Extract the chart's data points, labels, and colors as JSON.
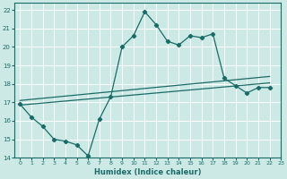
{
  "xlabel": "Humidex (Indice chaleur)",
  "xlim": [
    -0.5,
    23
  ],
  "ylim": [
    14,
    22.4
  ],
  "yticks": [
    14,
    15,
    16,
    17,
    18,
    19,
    20,
    21,
    22
  ],
  "xticks": [
    0,
    1,
    2,
    3,
    4,
    5,
    6,
    7,
    8,
    9,
    10,
    11,
    12,
    13,
    14,
    15,
    16,
    17,
    18,
    19,
    20,
    21,
    22,
    23
  ],
  "background_color": "#cce9e5",
  "grid_color": "#ffffff",
  "line_color": "#1a6b68",
  "line1_x": [
    0,
    1,
    2,
    3,
    4,
    5,
    6,
    7,
    8,
    9,
    10,
    11,
    12,
    13,
    14,
    15,
    16,
    17,
    18,
    19,
    20,
    21,
    22
  ],
  "line1_y": [
    16.9,
    16.2,
    15.7,
    15.0,
    14.9,
    14.7,
    14.1,
    16.1,
    17.3,
    20.0,
    20.6,
    21.9,
    21.2,
    20.3,
    20.1,
    20.6,
    20.5,
    20.7,
    18.3,
    17.9,
    17.5,
    17.8,
    17.8
  ],
  "line2_x": [
    0,
    22
  ],
  "line2_y": [
    16.85,
    18.05
  ],
  "line3_x": [
    0,
    22
  ],
  "line3_y": [
    17.1,
    18.4
  ]
}
